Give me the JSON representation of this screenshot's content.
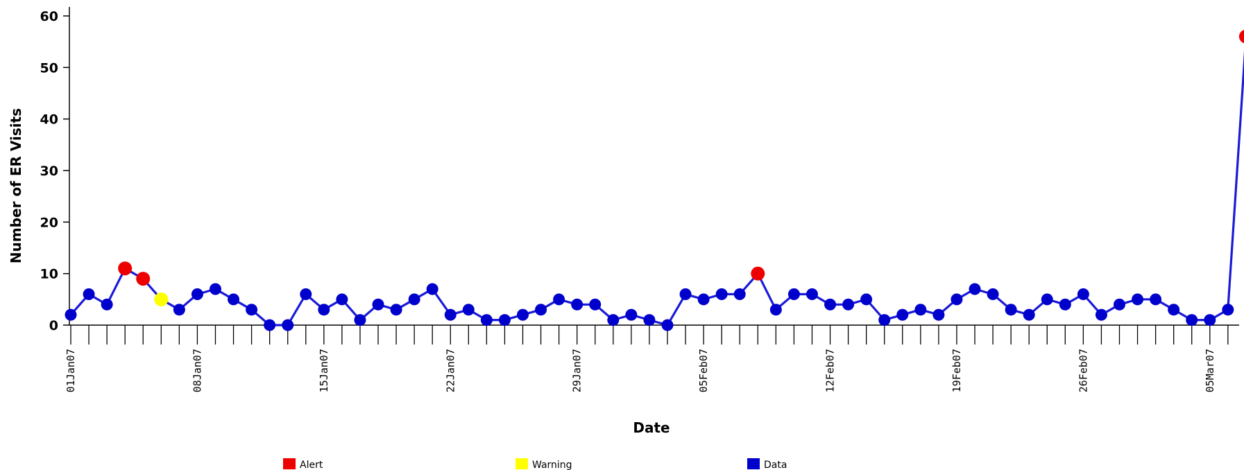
{
  "chart_data": {
    "type": "line",
    "xlabel": "Date",
    "ylabel": "Number of ER Visits",
    "ylim": [
      0,
      60
    ],
    "yticks": [
      0,
      10,
      20,
      30,
      40,
      50,
      60
    ],
    "grid": false,
    "legend_placement": "bottom",
    "x_tick_labels": [
      "01Jan07",
      "08Jan07",
      "15Jan07",
      "22Jan07",
      "29Jan07",
      "05Feb07",
      "12Feb07",
      "19Feb07",
      "26Feb07",
      "05Mar07"
    ],
    "x": [
      "01Jan07",
      "02Jan07",
      "03Jan07",
      "04Jan07",
      "05Jan07",
      "06Jan07",
      "07Jan07",
      "08Jan07",
      "09Jan07",
      "10Jan07",
      "11Jan07",
      "12Jan07",
      "13Jan07",
      "14Jan07",
      "15Jan07",
      "16Jan07",
      "17Jan07",
      "18Jan07",
      "19Jan07",
      "20Jan07",
      "21Jan07",
      "22Jan07",
      "23Jan07",
      "24Jan07",
      "25Jan07",
      "26Jan07",
      "27Jan07",
      "28Jan07",
      "29Jan07",
      "30Jan07",
      "31Jan07",
      "01Feb07",
      "02Feb07",
      "03Feb07",
      "04Feb07",
      "05Feb07",
      "06Feb07",
      "07Feb07",
      "08Feb07",
      "09Feb07",
      "10Feb07",
      "11Feb07",
      "12Feb07",
      "13Feb07",
      "14Feb07",
      "15Feb07",
      "16Feb07",
      "17Feb07",
      "18Feb07",
      "19Feb07",
      "20Feb07",
      "21Feb07",
      "22Feb07",
      "23Feb07",
      "24Feb07",
      "25Feb07",
      "26Feb07",
      "27Feb07",
      "28Feb07",
      "01Mar07",
      "02Mar07",
      "03Mar07",
      "04Mar07",
      "05Mar07",
      "06Mar07",
      "07Mar07"
    ],
    "values": [
      2,
      6,
      4,
      11,
      9,
      5,
      3,
      6,
      7,
      5,
      3,
      0,
      0,
      6,
      3,
      5,
      1,
      4,
      3,
      5,
      7,
      2,
      3,
      1,
      1,
      2,
      3,
      5,
      4,
      4,
      1,
      2,
      1,
      0,
      6,
      5,
      6,
      6,
      10,
      3,
      6,
      6,
      4,
      4,
      5,
      1,
      2,
      3,
      2,
      5,
      7,
      6,
      3,
      2,
      5,
      4,
      6,
      2,
      4,
      5,
      5,
      3,
      1,
      1,
      3,
      56
    ],
    "status": [
      "Data",
      "Data",
      "Data",
      "Alert",
      "Alert",
      "Warning",
      "Data",
      "Data",
      "Data",
      "Data",
      "Data",
      "Data",
      "Data",
      "Data",
      "Data",
      "Data",
      "Data",
      "Data",
      "Data",
      "Data",
      "Data",
      "Data",
      "Data",
      "Data",
      "Data",
      "Data",
      "Data",
      "Data",
      "Data",
      "Data",
      "Data",
      "Data",
      "Data",
      "Data",
      "Data",
      "Data",
      "Data",
      "Data",
      "Alert",
      "Data",
      "Data",
      "Data",
      "Data",
      "Data",
      "Data",
      "Data",
      "Data",
      "Data",
      "Data",
      "Data",
      "Data",
      "Data",
      "Data",
      "Data",
      "Data",
      "Data",
      "Data",
      "Data",
      "Data",
      "Data",
      "Data",
      "Data",
      "Data",
      "Data",
      "Data",
      "Alert"
    ],
    "colors": {
      "line": "#1a1ad8",
      "Data": "#0000cc",
      "Alert": "#ee0000",
      "Warning": "#ffff00"
    },
    "legend": [
      {
        "label": "Alert",
        "color": "#ee0000"
      },
      {
        "label": "Warning",
        "color": "#ffff00"
      },
      {
        "label": "Data",
        "color": "#0000cc"
      }
    ]
  }
}
